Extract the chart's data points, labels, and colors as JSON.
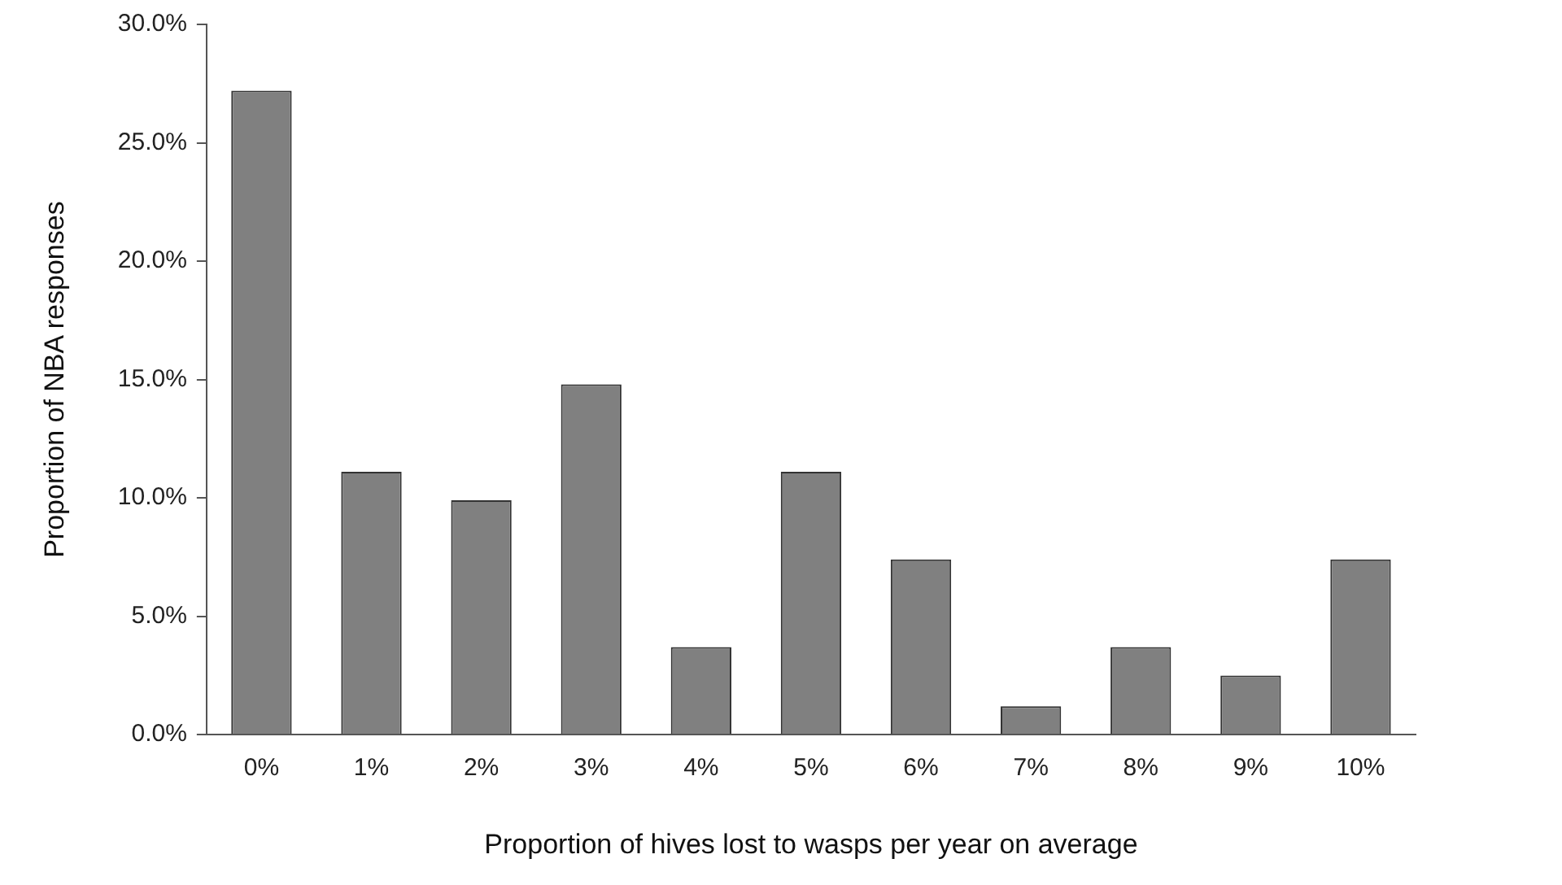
{
  "chart_data": {
    "type": "bar",
    "xlabel": "Proportion of hives lost to wasps per year on average",
    "ylabel": "Proportion of NBA responses",
    "categories": [
      "0%",
      "1%",
      "2%",
      "3%",
      "4%",
      "5%",
      "6%",
      "7%",
      "8%",
      "9%",
      "10%"
    ],
    "values": [
      27.2,
      11.1,
      9.9,
      14.8,
      3.7,
      11.1,
      7.4,
      1.2,
      3.7,
      2.5,
      7.4
    ],
    "color": "#808080",
    "ylim": [
      0,
      30
    ],
    "yticks": [
      {
        "value": 0,
        "label": "0.0%"
      },
      {
        "value": 5,
        "label": "5.0%"
      },
      {
        "value": 10,
        "label": "10.0%"
      },
      {
        "value": 15,
        "label": "15.0%"
      },
      {
        "value": 20,
        "label": "20.0%"
      },
      {
        "value": 25,
        "label": "25.0%"
      },
      {
        "value": 30,
        "label": "30.0%"
      }
    ],
    "grid": false,
    "legend": false
  }
}
